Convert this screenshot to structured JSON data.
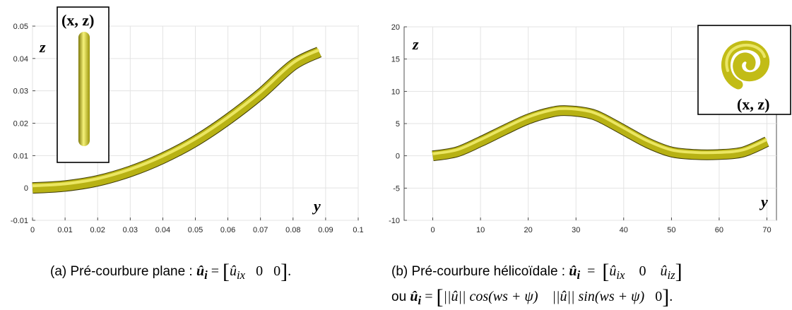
{
  "chart_data": [
    {
      "type": "line",
      "x": [
        0,
        0.01,
        0.02,
        0.03,
        0.04,
        0.05,
        0.06,
        0.07,
        0.08,
        0.088
      ],
      "series": [
        {
          "values": [
            0,
            0.0006,
            0.0022,
            0.0051,
            0.0092,
            0.0145,
            0.0212,
            0.029,
            0.038,
            0.042
          ]
        }
      ],
      "xlim": [
        0,
        0.1
      ],
      "ylim": [
        -0.01,
        0.05
      ],
      "xticks": [
        "0",
        "0.01",
        "0.02",
        "0.03",
        "0.04",
        "0.05",
        "0.06",
        "0.07",
        "0.08",
        "0.09",
        "0.1"
      ],
      "yticks": [
        "-0.01",
        "0",
        "0.01",
        "0.02",
        "0.03",
        "0.04",
        "0.05"
      ],
      "xlabel": "y",
      "ylabel": "z",
      "inset_label": "(x, z)",
      "grid": true,
      "line_color": "#b8b214"
    },
    {
      "type": "line",
      "x": [
        0,
        5,
        10,
        15,
        20,
        25,
        28,
        32,
        35,
        40,
        45,
        50,
        55,
        60,
        65,
        70
      ],
      "series": [
        {
          "values": [
            0,
            0.6,
            2.2,
            4.0,
            5.7,
            6.8,
            7.0,
            6.7,
            6.0,
            4.0,
            2.0,
            0.6,
            0.2,
            0.2,
            0.6,
            2.2
          ]
        }
      ],
      "xlim": [
        -6,
        72
      ],
      "ylim": [
        -10,
        20
      ],
      "xticks": [
        "0",
        "10",
        "20",
        "30",
        "40",
        "50",
        "60",
        "70"
      ],
      "yticks": [
        "-10",
        "-5",
        "0",
        "5",
        "10",
        "15",
        "20"
      ],
      "xlabel": "y",
      "ylabel": "z",
      "inset_label": "(x, z)",
      "grid": true,
      "line_color": "#b8b214"
    }
  ],
  "captions": {
    "a": {
      "prefix": "(a) Pré-courbure plane :",
      "sym": "û",
      "sub": "i",
      "eq": "=",
      "m1": "û",
      "m1sub": "ix",
      "m2": "0",
      "m3": "0",
      "end": "."
    },
    "b": {
      "prefix": "(b) Pré-courbure hélicoïdale :",
      "sym": "û",
      "sub": "i",
      "eq": "=",
      "m1": "û",
      "m1sub": "ix",
      "m2": "0",
      "m3": "û",
      "m3sub": "iz",
      "line2_prefix": "ou",
      "l2sym": "û",
      "l2sub": "i",
      "l2eq": "=",
      "l2m1": "||û|| cos(ws + ψ)",
      "l2m2": "||û|| sin(ws + ψ)",
      "l2m3": "0",
      "end": "."
    }
  }
}
